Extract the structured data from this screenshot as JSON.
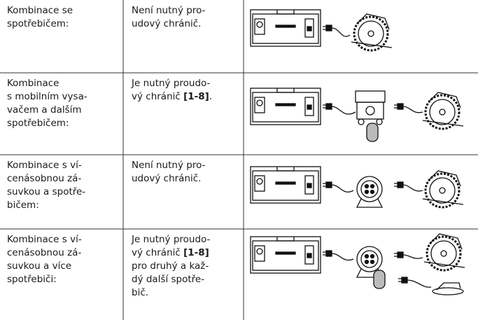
{
  "table": {
    "rows": [
      {
        "cells": [
          {
            "lines": [
              "Kombinace se",
              "spotřebičem:"
            ]
          },
          {
            "lines": [
              "Není nutný pro-",
              "udový chránič."
            ]
          }
        ]
      },
      {
        "cells": [
          {
            "lines": [
              "Kombinace",
              "s mobilním vysa-",
              "vačem a dalším",
              "spotřebičem:"
            ]
          },
          {
            "lines": [
              "Je nutný proudo-",
              [
                "vý chránič ",
                {
                  "bold": "[1-8]"
                },
                "."
              ]
            ]
          }
        ]
      },
      {
        "cells": [
          {
            "lines": [
              "Kombinace s ví-",
              "cenásobnou zá-",
              "suvkou a spotře-",
              "bičem:"
            ]
          },
          {
            "lines": [
              "Není nutný pro-",
              "udový chránič."
            ]
          }
        ]
      },
      {
        "cells": [
          {
            "lines": [
              "Kombinace s ví-",
              "cenásobnou zá-",
              "suvkou a více",
              "spotřebiči:"
            ]
          },
          {
            "lines": [
              "Je nutný proudo-",
              [
                "vý chránič ",
                {
                  "bold": "[1-8]"
                }
              ],
              "pro druhý a kaž-",
              "dý další spotře-",
              "bič."
            ]
          }
        ]
      }
    ]
  }
}
